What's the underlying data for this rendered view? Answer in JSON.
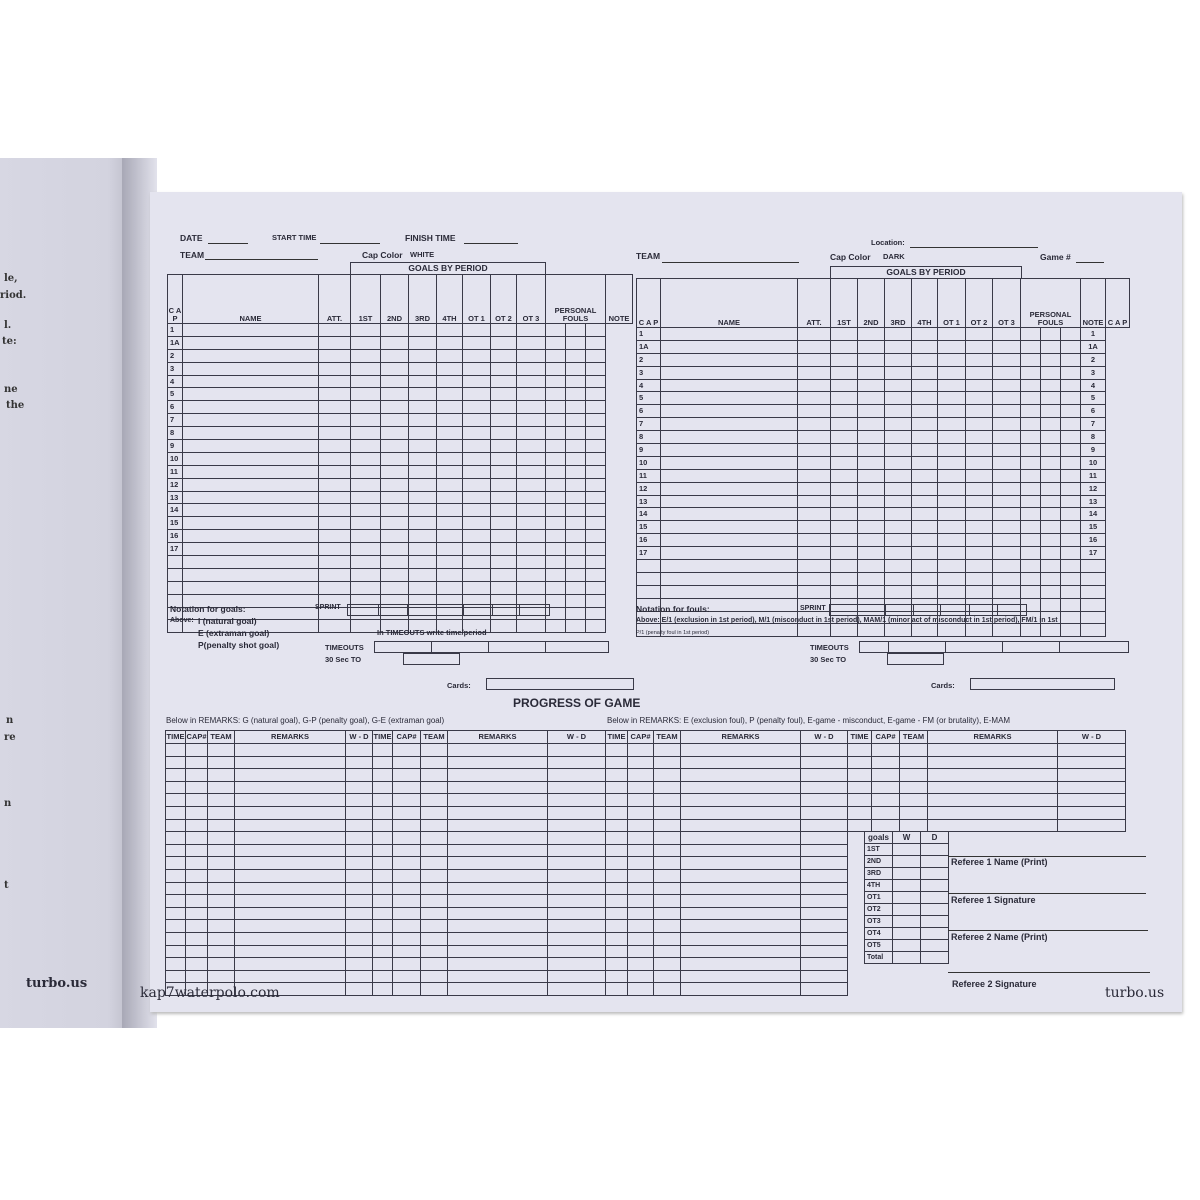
{
  "left_page": {
    "fragments": [
      "le,",
      "riod.",
      "l.",
      "te:",
      "ne",
      "the",
      "n",
      "re",
      "n",
      "t"
    ],
    "brand": "turbo.us"
  },
  "header_left": {
    "date_label": "DATE",
    "start_time_label": "START TIME",
    "finish_time_label": "FINISH TIME",
    "team_label": "TEAM",
    "cap_color_label": "Cap Color",
    "cap_color_value": "WHITE"
  },
  "header_right": {
    "location_label": "Location:",
    "team_label": "TEAM",
    "cap_color_label": "Cap Color",
    "cap_color_value": "DARK",
    "game_label": "Game #"
  },
  "roster": {
    "goals_by_period": "GOALS BY PERIOD",
    "columns": {
      "cap": "C A P",
      "name": "NAME",
      "att": "ATT.",
      "p1": "1ST",
      "p2": "2ND",
      "p3": "3RD",
      "p4": "4TH",
      "ot1": "OT 1",
      "ot2": "OT 2",
      "ot3": "OT 3",
      "fouls": "PERSONAL FOULS",
      "note": "NOTE"
    },
    "caps": [
      "1",
      "1A",
      "2",
      "3",
      "4",
      "5",
      "6",
      "7",
      "8",
      "9",
      "10",
      "11",
      "12",
      "13",
      "14",
      "15",
      "16",
      "17",
      "",
      "",
      "",
      "",
      "",
      ""
    ],
    "sprint_label": "SPRINT"
  },
  "notes_left": {
    "title": "Notation for goals:",
    "above": "Above:",
    "items": [
      "I  (natural goal)",
      "E (extraman goal)",
      "P(penalty shot goal)"
    ],
    "timeouts_hint": "In TIMEOUTS write time/period",
    "timeouts_label": "TIMEOUTS",
    "to30_label": "30 Sec TO",
    "cards_label": "Cards:"
  },
  "notes_right": {
    "title": "Notation for fouls:",
    "above": "Above: E/1 (exclusion in 1st period), M/1 (misconduct in 1st period), MAM/1 (minor act of misconduct in 1st period), FM/1 in 1st",
    "above2": "P/1 (penalty foul in 1st period)",
    "timeouts_label": "TIMEOUTS",
    "to30_label": "30 Sec TO",
    "cards_label": "Cards:"
  },
  "progress": {
    "title": "PROGRESS OF GAME",
    "remarks_left": "Below in REMARKS: G (natural goal), G-P (penalty goal), G-E (extraman goal)",
    "remarks_right": "Below in REMARKS: E (exclusion foul),  P (penalty foul), E-game - misconduct, E-game - FM (or brutality),  E-MAM",
    "columns": [
      "TIME",
      "CAP#",
      "TEAM",
      "REMARKS",
      "W - D"
    ]
  },
  "goals_summary": {
    "header": [
      "goals",
      "W",
      "D"
    ],
    "rows": [
      "1ST",
      "2ND",
      "3RD",
      "4TH",
      "OT1",
      "OT2",
      "OT3",
      "OT4",
      "OT5",
      "Total"
    ]
  },
  "referees": {
    "ref1_name": "Referee 1 Name (Print)",
    "ref1_sig": "Referee 1 Signature",
    "ref2_name": "Referee 2 Name (Print)",
    "ref2_sig": "Referee 2 Signature"
  },
  "footer": {
    "left_brand": "kap7waterpolo.com",
    "right_brand": "turbo.us"
  }
}
